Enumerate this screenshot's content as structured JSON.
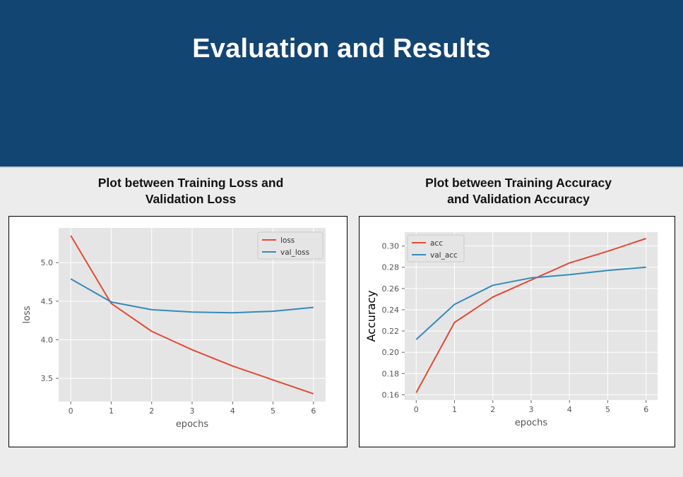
{
  "slide": {
    "title": "Evaluation and Results",
    "left_caption": [
      "Plot between Training Loss and",
      "Validation Loss"
    ],
    "right_caption": [
      "Plot between Training Accuracy",
      "and Validation Accuracy"
    ]
  },
  "colors": {
    "header_bg": "#134573",
    "plot_bg": "#e5e5e5",
    "series_red": "#e24a33",
    "series_blue": "#348abd"
  },
  "chart_data": [
    {
      "type": "line",
      "x": [
        0,
        1,
        2,
        3,
        4,
        5,
        6
      ],
      "xlabel": "epochs",
      "ylabel": "loss",
      "xlim": [
        -0.3,
        6.3
      ],
      "ylim": [
        3.2,
        5.45
      ],
      "xticks": [
        0,
        1,
        2,
        3,
        4,
        5,
        6
      ],
      "yticks": [
        3.5,
        4.0,
        4.5,
        5.0
      ],
      "ytick_labels": [
        "3.5",
        "4.0",
        "4.5",
        "5.0"
      ],
      "grid": true,
      "legend": "top-right",
      "series": [
        {
          "name": "loss",
          "color": "#e24a33",
          "values": [
            5.35,
            4.47,
            4.11,
            3.87,
            3.66,
            3.48,
            3.3
          ]
        },
        {
          "name": "val_loss",
          "color": "#348abd",
          "values": [
            4.79,
            4.49,
            4.39,
            4.36,
            4.35,
            4.37,
            4.42
          ]
        }
      ]
    },
    {
      "type": "line",
      "x": [
        0,
        1,
        2,
        3,
        4,
        5,
        6
      ],
      "xlabel": "epochs",
      "ylabel": "Accuracy",
      "xlim": [
        -0.3,
        6.3
      ],
      "ylim": [
        0.155,
        0.313
      ],
      "xticks": [
        0,
        1,
        2,
        3,
        4,
        5,
        6
      ],
      "yticks": [
        0.16,
        0.18,
        0.2,
        0.22,
        0.24,
        0.26,
        0.28,
        0.3
      ],
      "ytick_labels": [
        "0.16",
        "0.18",
        "0.20",
        "0.22",
        "0.24",
        "0.26",
        "0.28",
        "0.30"
      ],
      "grid": true,
      "legend": "top-left",
      "series": [
        {
          "name": "acc",
          "color": "#e24a33",
          "values": [
            0.162,
            0.228,
            0.252,
            0.268,
            0.284,
            0.295,
            0.307
          ]
        },
        {
          "name": "val_acc",
          "color": "#348abd",
          "values": [
            0.212,
            0.245,
            0.263,
            0.27,
            0.273,
            0.277,
            0.28
          ]
        }
      ]
    }
  ]
}
